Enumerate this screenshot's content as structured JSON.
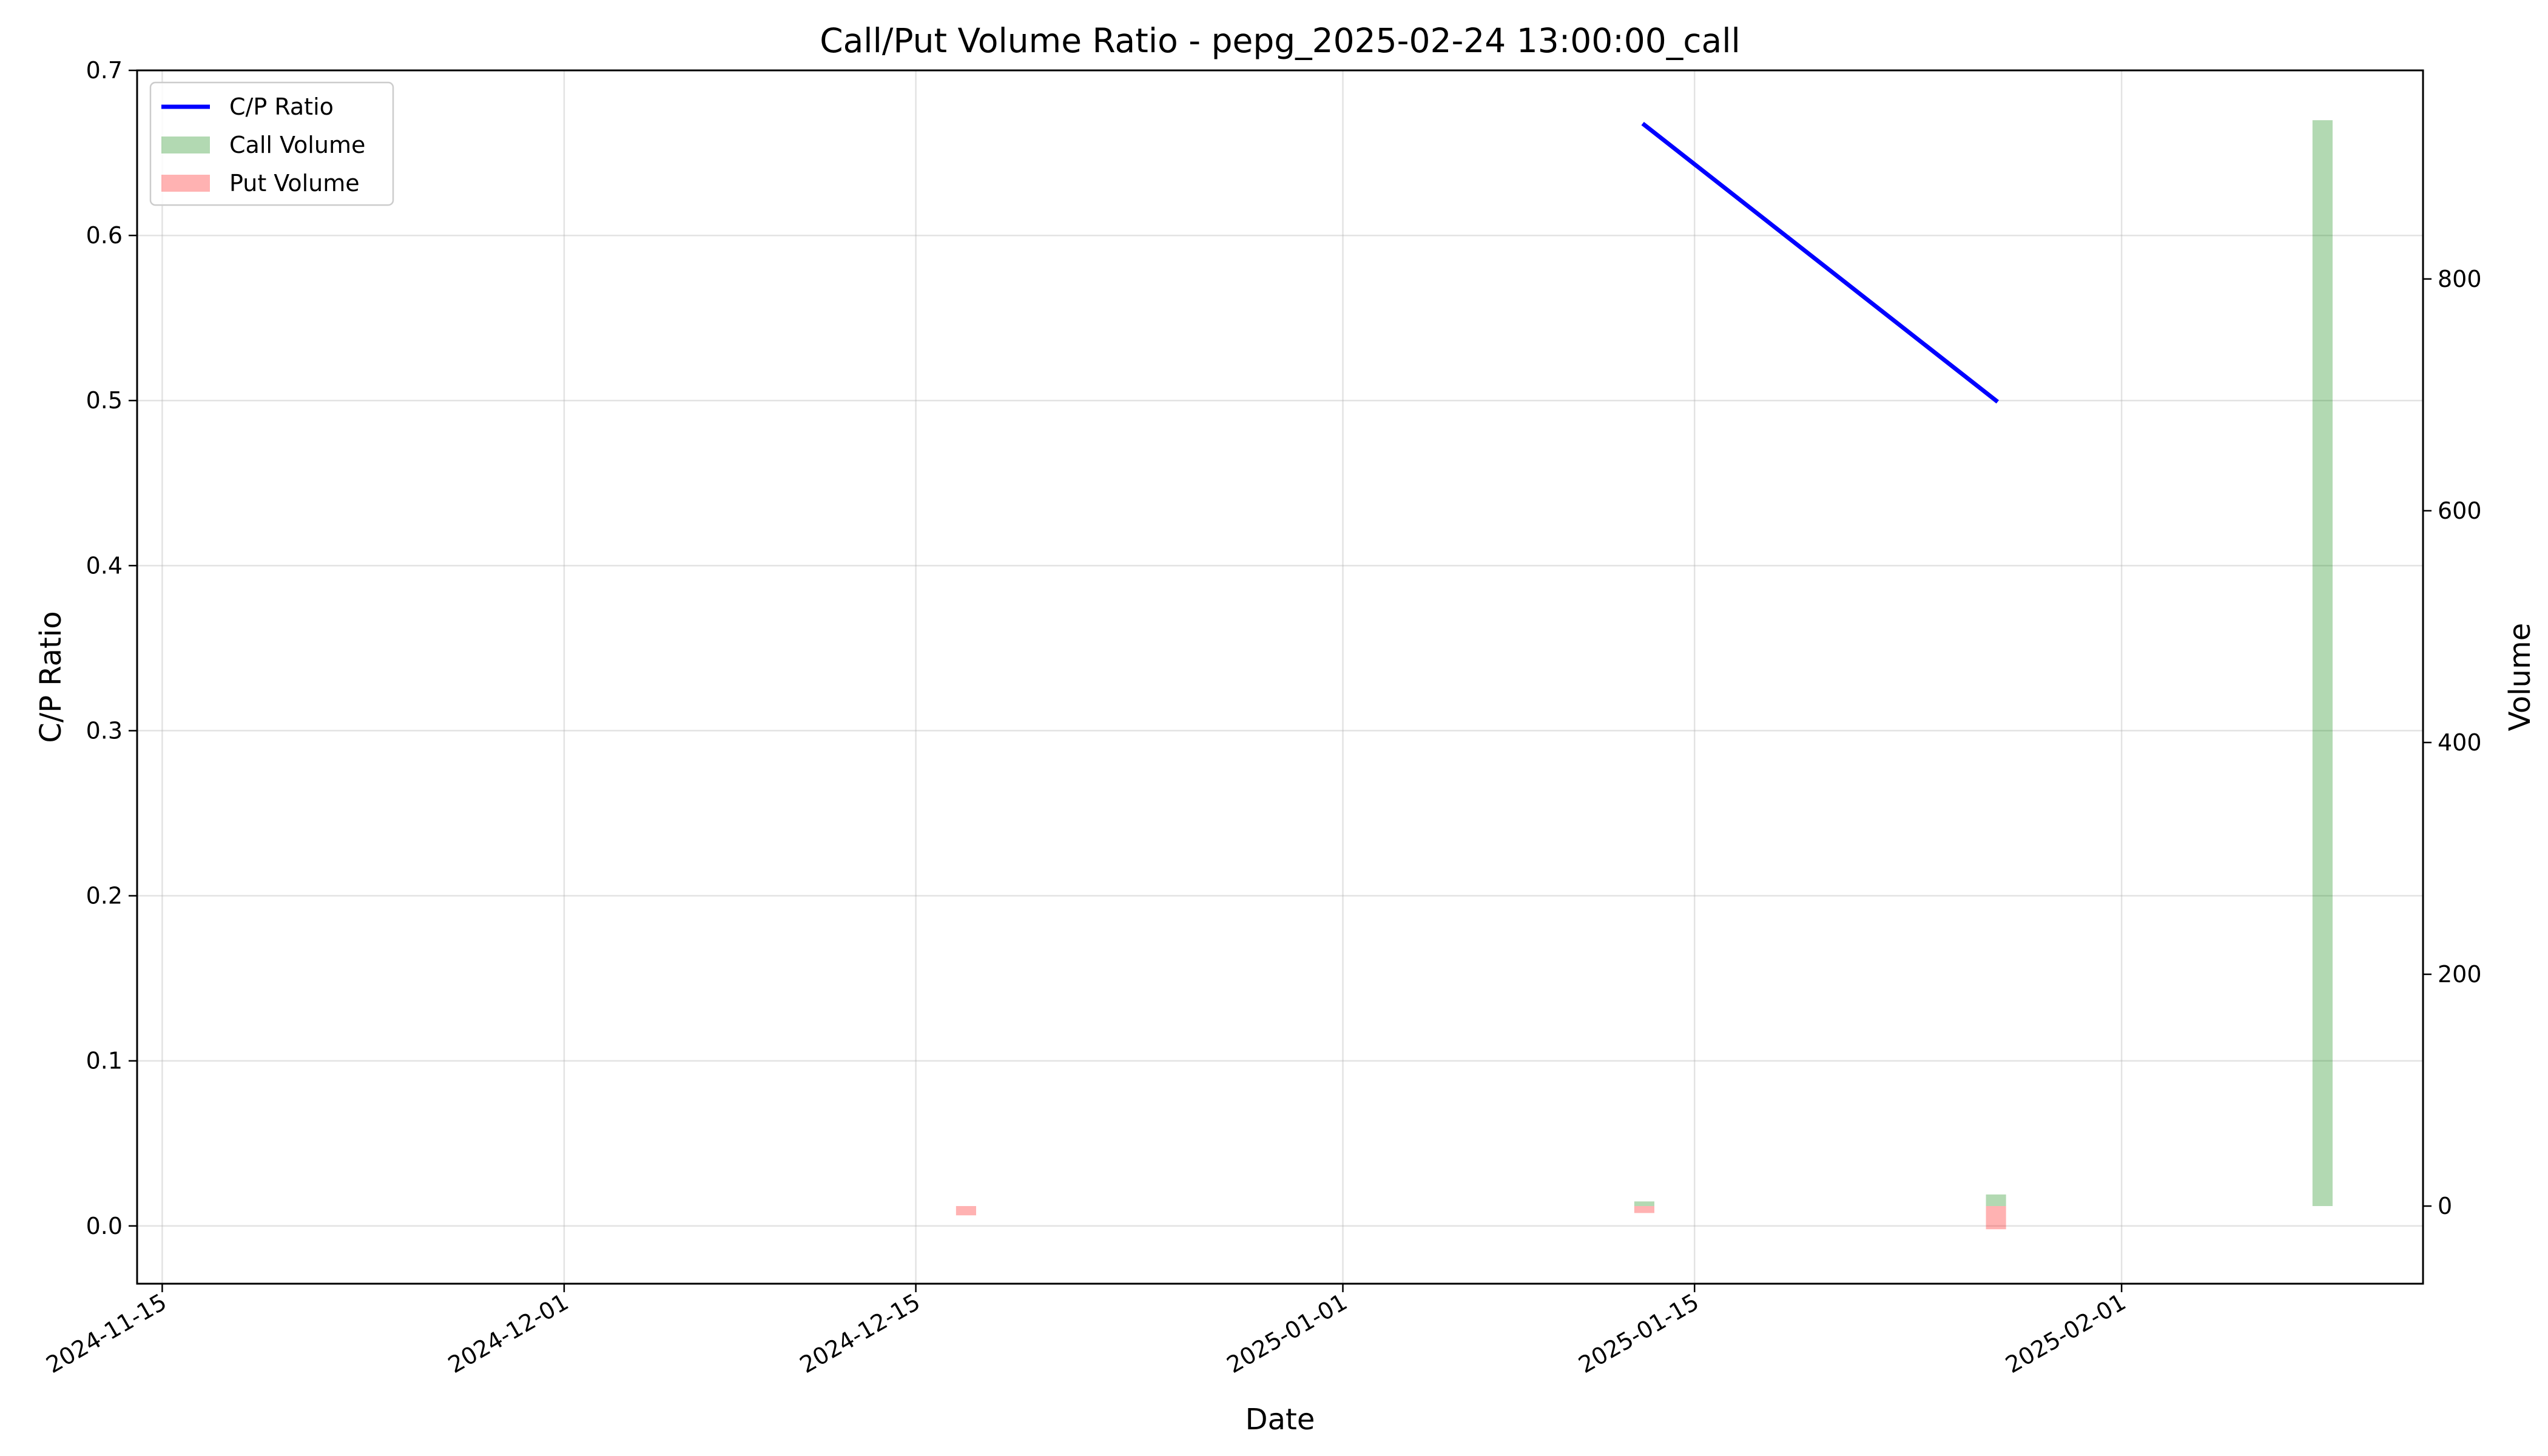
{
  "chart_data": {
    "type": "line+bar",
    "title": "Call/Put Volume Ratio - pepg_2025-02-24 13:00:00_call",
    "xlabel": "Date",
    "ylabel_left": "C/P Ratio",
    "ylabel_right": "Volume",
    "x_ticks": [
      "2024-11-15",
      "2024-12-01",
      "2024-12-15",
      "2025-01-01",
      "2025-01-15",
      "2025-02-01"
    ],
    "x_range": [
      "2024-11-14",
      "2025-02-13"
    ],
    "y_left": {
      "ylim": [
        -0.035,
        0.7
      ],
      "ticks": [
        "0.0",
        "0.1",
        "0.2",
        "0.3",
        "0.4",
        "0.5",
        "0.6",
        "0.7"
      ]
    },
    "y_right": {
      "ylim": [
        -67,
        980
      ],
      "ticks": [
        "0",
        "200",
        "400",
        "600",
        "800"
      ]
    },
    "grid": true,
    "legend_placement": "top-left",
    "series": [
      {
        "name": "C/P Ratio",
        "kind": "line",
        "axis": "left",
        "color": "#0000ff",
        "points": [
          {
            "date": "2025-01-13",
            "value": 0.667
          },
          {
            "date": "2025-01-27",
            "value": 0.5
          }
        ]
      },
      {
        "name": "Call Volume",
        "kind": "bar",
        "axis": "right",
        "color": "#008000",
        "opacity": 0.3,
        "points": [
          {
            "date": "2025-01-13",
            "value": 4
          },
          {
            "date": "2025-01-27",
            "value": 10
          },
          {
            "date": "2025-02-09",
            "value": 937
          }
        ]
      },
      {
        "name": "Put Volume",
        "kind": "bar",
        "axis": "right",
        "color": "#ff0000",
        "opacity": 0.3,
        "points": [
          {
            "date": "2024-12-17",
            "value": -8
          },
          {
            "date": "2025-01-13",
            "value": -6
          },
          {
            "date": "2025-01-27",
            "value": -20
          }
        ]
      }
    ]
  }
}
